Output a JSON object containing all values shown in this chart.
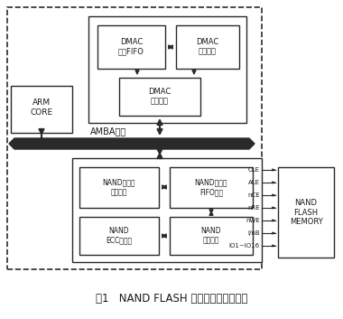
{
  "title": "图1   NAND FLASH 控制器及其系统架构",
  "bg_color": "#ffffff",
  "line_color": "#2a2a2a",
  "signals": [
    "CLE",
    "ALE",
    "nCE",
    "nRE",
    "nWE",
    "I/nB",
    "IO1~IO16"
  ],
  "amba_label": "AMBA总线",
  "font_size_block": 6.0,
  "font_size_signal": 5.0,
  "font_size_amba": 7.0,
  "font_size_title": 8.5
}
